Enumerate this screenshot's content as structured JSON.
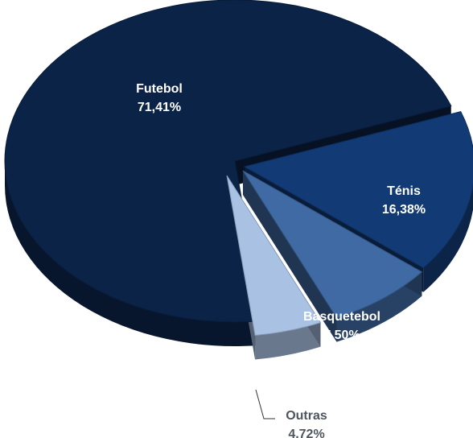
{
  "chart_data": {
    "type": "pie",
    "title": "",
    "categories": [
      "Futebol",
      "Ténis",
      "Basquetebol",
      "Outras"
    ],
    "values": [
      71.41,
      16.38,
      7.5,
      4.72
    ],
    "value_labels": [
      "71,41%",
      "16,38%",
      "7,50%",
      "4,72%"
    ],
    "colors": [
      "#0b2347",
      "#123a74",
      "#3f6aa3",
      "#a9c2e4"
    ],
    "label_colors": [
      "#ffffff",
      "#ffffff",
      "#ffffff",
      "#4d5660"
    ],
    "exploded": true,
    "style": "3d",
    "legend": "none"
  }
}
